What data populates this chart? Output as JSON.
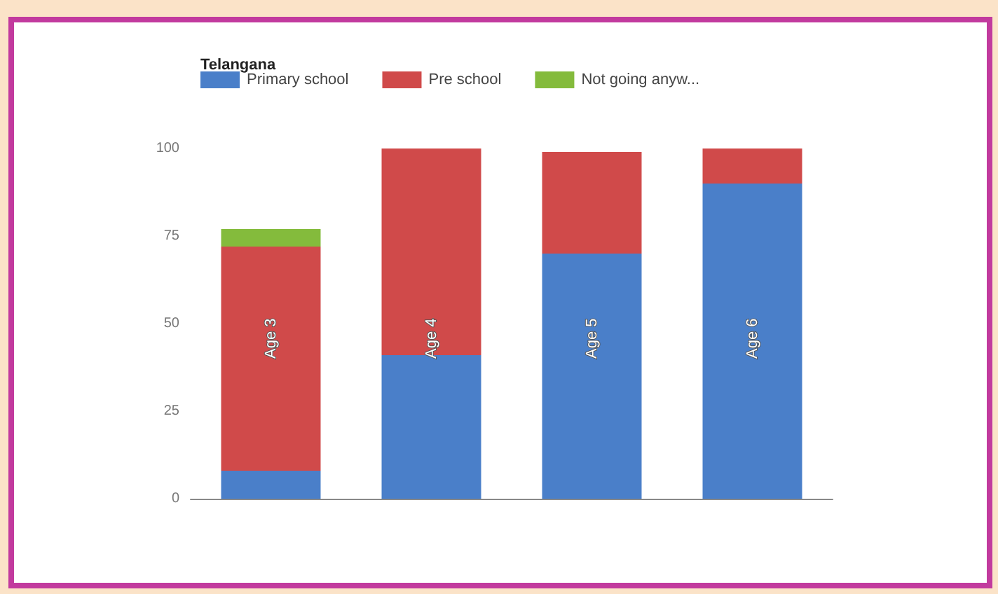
{
  "chart_data": {
    "type": "bar",
    "stacked": true,
    "title": "Telangana",
    "categories": [
      "Age 3",
      "Age 4",
      "Age 5",
      "Age 6"
    ],
    "series": [
      {
        "name": "Primary school",
        "color": "#4a7fc9",
        "values": [
          8,
          41,
          70,
          90
        ]
      },
      {
        "name": "Pre school",
        "color": "#d04a4a",
        "values": [
          64,
          59,
          29,
          10
        ]
      },
      {
        "name": "Not going anyw...",
        "color": "#84bb3c",
        "values": [
          5,
          0,
          0,
          0
        ]
      }
    ],
    "ylim": [
      0,
      100
    ],
    "yticks": [
      0,
      25,
      50,
      75,
      100
    ],
    "grid": false,
    "legend": "top left"
  }
}
